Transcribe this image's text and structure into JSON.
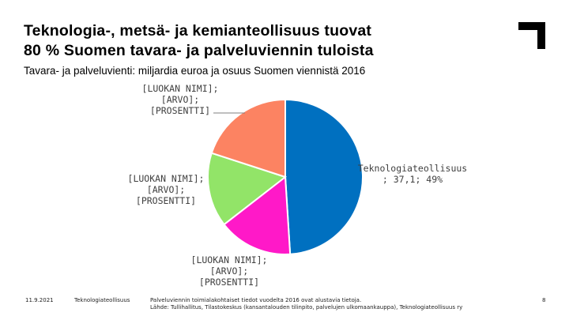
{
  "title_line1": "Teknologia-, metsä- ja kemianteollisuus tuovat",
  "title_line2": "80 % Suomen tavara- ja palveluviennin tuloista",
  "subtitle": "Tavara- ja palveluvienti: miljardia euroa ja osuus Suomen viennistä 2016",
  "chart_data": {
    "type": "pie",
    "title": "",
    "slices": [
      {
        "name": "Teknologiateollisuus",
        "value": 37.1,
        "percent": 49,
        "color": "#0070c0",
        "label_lines": [
          "Teknologiateollisuus",
          "; 37,1; 49%"
        ]
      },
      {
        "name": "[LUOKAN NIMI]",
        "value_text": "[ARVO]",
        "percent_text": "[PROSENTTI]",
        "fraction": 0.155,
        "color": "#ff19c8",
        "label_lines": [
          "[LUOKAN NIMI];",
          "[ARVO];",
          "[PROSENTTI]"
        ]
      },
      {
        "name": "[LUOKAN NIMI]",
        "value_text": "[ARVO]",
        "percent_text": "[PROSENTTI]",
        "fraction": 0.155,
        "color": "#92e468",
        "label_lines": [
          "[LUOKAN NIMI];",
          "[ARVO];",
          "[PROSENTTI]"
        ]
      },
      {
        "name": "[LUOKAN NIMI]",
        "value_text": "[ARVO]",
        "percent_text": "[PROSENTTI]",
        "fraction": 0.2,
        "color": "#fc8362",
        "label_lines": [
          "[LUOKAN NIMI];",
          "[ARVO];",
          "[PROSENTTI]"
        ]
      }
    ]
  },
  "footer": {
    "date": "11.9.2021",
    "org": "Teknologiateollisuus",
    "note_line1": "Palveluviennin toimialakohtaiset tiedot vuodelta 2016 ovat alustavia tietoja.",
    "note_line2": "Lähde: Tulli­hallitus, Tilastokeskus (kansantalouden tilinpito, palvelujen ulkomaankauppa), Teknologiateollisuus ry",
    "page": "8"
  },
  "colors": {
    "logo": "#000000",
    "leader": "#7f7f7f"
  }
}
